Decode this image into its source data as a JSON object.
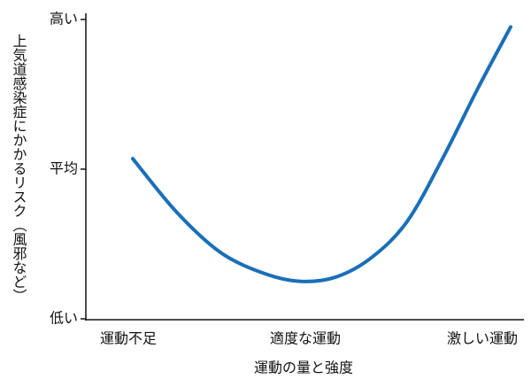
{
  "chart_data": {
    "type": "line",
    "x_label": "運動の量と強度",
    "y_label": "上気道感染症にかかるリスク（風邪など）",
    "x": [
      0.025,
      0.275,
      0.525,
      0.775,
      0.975,
      1.175,
      1.375,
      1.575,
      1.775,
      1.975,
      2.16
    ],
    "values": [
      1.07,
      0.71,
      0.44,
      0.3,
      0.25,
      0.28,
      0.41,
      0.65,
      1.07,
      1.54,
      1.95
    ],
    "color": "#1a6fb8",
    "xlim": [
      -0.24,
      2.225
    ],
    "xticks": [
      {
        "value": 0,
        "label": "運動不足"
      },
      {
        "value": 1,
        "label": "適度な運動"
      },
      {
        "value": 2,
        "label": "激しい運動"
      }
    ],
    "ylim": [
      0,
      2
    ],
    "yticks": [
      {
        "value": 0,
        "label": "低い"
      },
      {
        "value": 1,
        "label": "平均"
      },
      {
        "value": 2,
        "label": "高い"
      }
    ]
  }
}
